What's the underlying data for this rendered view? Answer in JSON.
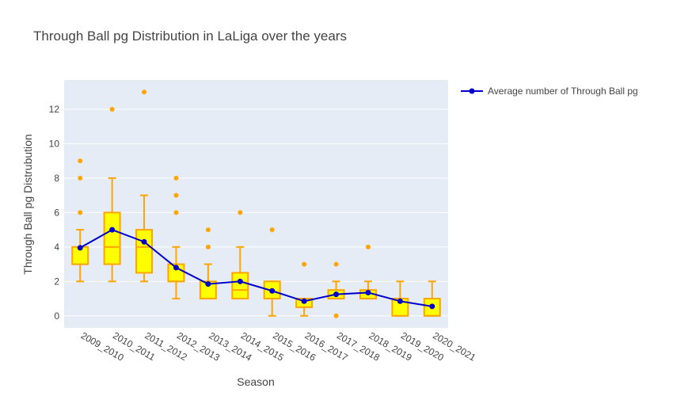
{
  "colors": {
    "plot_bg": "#E5ECF6",
    "grid": "#ffffff",
    "box_fill": "#FFFF00",
    "box_line": "#FFA500",
    "line": "#0000CD",
    "text": "#444444"
  },
  "chart_data": {
    "type": "box",
    "title": "Through Ball pg Distribution in LaLiga over the years",
    "xlabel": "Season",
    "ylabel": "Through Ball pg Distrubution",
    "ylim": [
      -0.7,
      13.7
    ],
    "yticks": [
      0,
      2,
      4,
      6,
      8,
      10,
      12
    ],
    "legend_position": "top-right",
    "categories": [
      "2009_2010",
      "2010_2011",
      "2011_2012",
      "2012_2013",
      "2013_2014",
      "2014_2015",
      "2015_2016",
      "2016_2017",
      "2017_2018",
      "2018_2019",
      "2019_2020",
      "2020_2021"
    ],
    "boxes": [
      {
        "min": 2,
        "q1": 3,
        "median": 3,
        "q3": 4,
        "max": 5,
        "outliers": [
          6,
          8,
          9
        ]
      },
      {
        "min": 2,
        "q1": 3,
        "median": 4,
        "q3": 6,
        "max": 8,
        "outliers": [
          12
        ]
      },
      {
        "min": 2,
        "q1": 2.5,
        "median": 4,
        "q3": 5,
        "max": 7,
        "outliers": [
          13
        ]
      },
      {
        "min": 1,
        "q1": 2,
        "median": 2,
        "q3": 3,
        "max": 4,
        "outliers": [
          6,
          7,
          8
        ]
      },
      {
        "min": 1,
        "q1": 1,
        "median": 1,
        "q3": 2,
        "max": 3,
        "outliers": [
          4,
          5
        ]
      },
      {
        "min": 1,
        "q1": 1,
        "median": 1.5,
        "q3": 2.5,
        "max": 4,
        "outliers": [
          6
        ]
      },
      {
        "min": 0,
        "q1": 1,
        "median": 1,
        "q3": 2,
        "max": 2,
        "outliers": [
          5
        ]
      },
      {
        "min": 0,
        "q1": 0.5,
        "median": 1,
        "q3": 1,
        "max": 1,
        "outliers": [
          3
        ]
      },
      {
        "min": 1,
        "q1": 1,
        "median": 1,
        "q3": 1.5,
        "max": 2,
        "outliers": [
          0,
          3
        ]
      },
      {
        "min": 1,
        "q1": 1,
        "median": 1,
        "q3": 1.5,
        "max": 2,
        "outliers": [
          4
        ]
      },
      {
        "min": 0,
        "q1": 0,
        "median": 1,
        "q3": 1,
        "max": 2,
        "outliers": []
      },
      {
        "min": 0,
        "q1": 0,
        "median": 0,
        "q3": 1,
        "max": 2,
        "outliers": []
      }
    ],
    "series": [
      {
        "name": "Average number of Through Ball pg",
        "type": "line",
        "values": [
          3.95,
          5.0,
          4.3,
          2.8,
          1.85,
          2.0,
          1.45,
          0.85,
          1.25,
          1.35,
          0.85,
          0.55
        ]
      }
    ]
  }
}
